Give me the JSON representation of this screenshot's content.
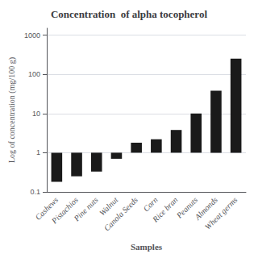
{
  "chart_data": {
    "type": "bar",
    "title": "Concentration  of alpha tocopherol",
    "xlabel": "Samples",
    "ylabel": "Log of concentration (mg/100 g)",
    "categories": [
      "Cashews",
      "Pistachios",
      "Pine nuts",
      "Walnut",
      "Canola Seeds",
      "Corn",
      "Rice bran",
      "Peanuts",
      "Almonds",
      "Wheat germs"
    ],
    "values": [
      0.18,
      0.25,
      0.33,
      0.7,
      1.8,
      2.2,
      3.8,
      10.0,
      38.0,
      250.0
    ],
    "color": "#1a1a1a",
    "log": "y",
    "ylim": [
      0.1,
      1500
    ],
    "yticks": [
      0.1,
      1,
      10,
      100,
      1000
    ],
    "grid": true
  }
}
